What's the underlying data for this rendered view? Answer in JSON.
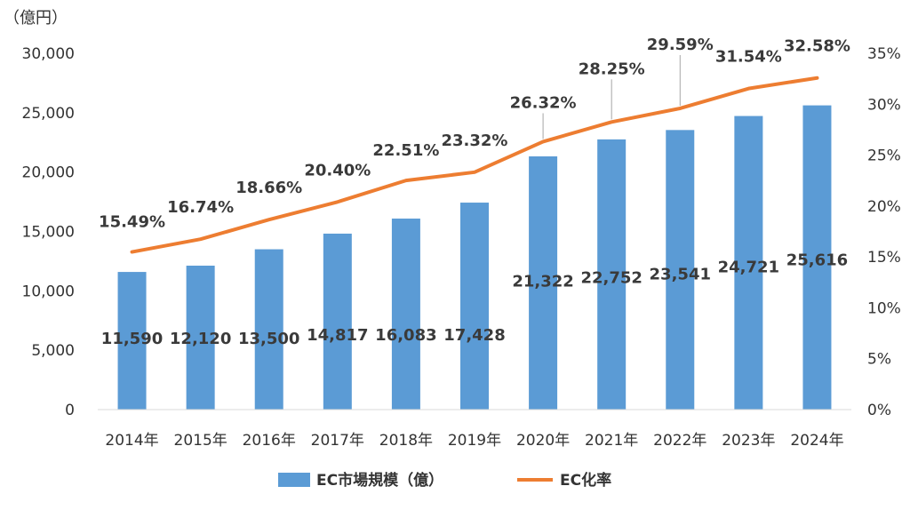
{
  "chart_data": {
    "type": "bar+line",
    "unit_label": "（億円）",
    "categories": [
      "2014年",
      "2015年",
      "2016年",
      "2017年",
      "2018年",
      "2019年",
      "2020年",
      "2021年",
      "2022年",
      "2023年",
      "2024年"
    ],
    "series": [
      {
        "name": "EC市場規模（億）",
        "type": "bar",
        "axis": "left",
        "color": "#5b9bd5",
        "values": [
          11590,
          12120,
          13500,
          14817,
          16083,
          17428,
          21322,
          22752,
          23541,
          24721,
          25616
        ],
        "labels": [
          "11,590",
          "12,120",
          "13,500",
          "14,817",
          "16,083",
          "17,428",
          "21,322",
          "22,752",
          "23,541",
          "24,721",
          "25,616"
        ]
      },
      {
        "name": "EC化率",
        "type": "line",
        "axis": "right",
        "color": "#ed7d31",
        "values": [
          15.49,
          16.74,
          18.66,
          20.4,
          22.51,
          23.32,
          26.32,
          28.25,
          29.59,
          31.54,
          32.58
        ],
        "labels": [
          "15.49%",
          "16.74%",
          "18.66%",
          "20.40%",
          "22.51%",
          "23.32%",
          "26.32%",
          "28.25%",
          "29.59%",
          "31.54%",
          "32.58%"
        ]
      }
    ],
    "y_left": {
      "min": 0,
      "max": 30000,
      "ticks": [
        "0",
        "5,000",
        "10,000",
        "15,000",
        "20,000",
        "25,000",
        "30,000"
      ]
    },
    "y_right": {
      "min": 0,
      "max": 35,
      "ticks": [
        "0%",
        "5%",
        "10%",
        "15%",
        "20%",
        "25%",
        "30%",
        "35%"
      ]
    },
    "grid": false,
    "legend_position": "bottom"
  }
}
